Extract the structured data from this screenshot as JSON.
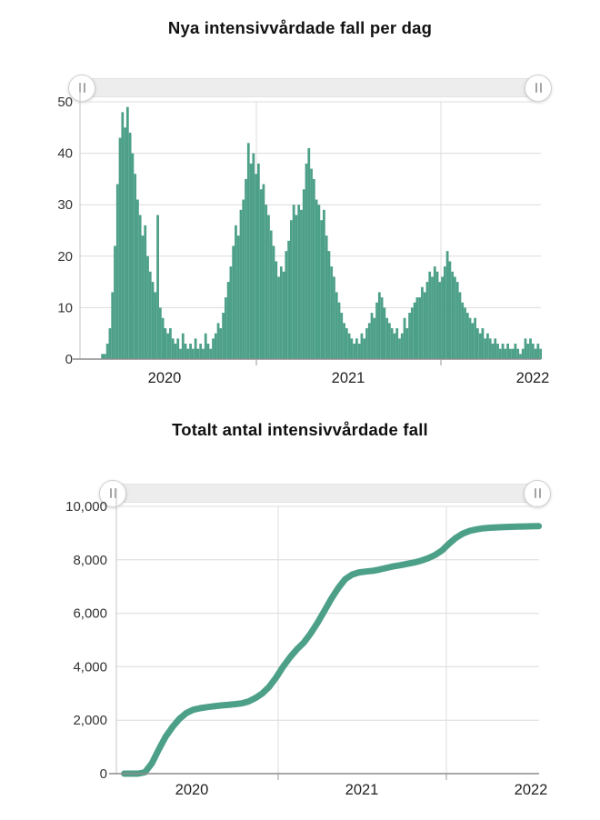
{
  "style": {
    "series_color": "#4DA088",
    "grid_color": "#DCDCDC",
    "axis_color": "#8C8C8C",
    "border_color": "#C4C4C4",
    "tick_color": "#999999",
    "label_color": "#333333",
    "background": "#FFFFFF"
  },
  "chart_data": [
    {
      "type": "bar",
      "title": "Nya intensivvårdade fall per dag",
      "x_tick_labels": [
        "2020",
        "2021",
        "2022"
      ],
      "x_domain_start": "2020-01-15",
      "x_domain_end": "2022-07-20",
      "ylim": [
        0,
        50
      ],
      "y_ticks": [
        0,
        10,
        20,
        30,
        40,
        50
      ],
      "y_tick_labels": [
        "0",
        "10",
        "20",
        "30",
        "40",
        "50"
      ],
      "grid": true,
      "bar_color": "#4DA088",
      "series_start": "2020-02-01",
      "sample_interval_days": 5,
      "values": [
        0,
        0,
        0,
        0,
        0,
        1,
        1,
        3,
        6,
        13,
        22,
        34,
        43,
        48,
        45,
        49,
        44,
        40,
        36,
        31,
        28,
        24,
        26,
        20,
        17,
        15,
        13,
        28,
        10,
        8,
        6,
        5,
        6,
        4,
        3,
        4,
        2,
        5,
        3,
        2,
        3,
        2,
        4,
        2,
        3,
        2,
        5,
        3,
        2,
        4,
        5,
        7,
        6,
        9,
        12,
        15,
        18,
        22,
        26,
        24,
        29,
        31,
        35,
        42,
        38,
        40,
        36,
        38,
        33,
        34,
        30,
        28,
        25,
        22,
        19,
        16,
        18,
        17,
        21,
        23,
        27,
        30,
        28,
        30,
        29,
        33,
        38,
        41,
        37,
        35,
        31,
        30,
        27,
        29,
        24,
        21,
        18,
        16,
        13,
        11,
        9,
        7,
        6,
        5,
        4,
        3,
        4,
        3,
        5,
        4,
        6,
        7,
        9,
        8,
        11,
        13,
        12,
        10,
        8,
        7,
        6,
        5,
        6,
        4,
        5,
        8,
        6,
        9,
        10,
        11,
        12,
        12,
        14,
        13,
        15,
        17,
        16,
        18,
        17,
        15,
        16,
        18,
        21,
        19,
        17,
        16,
        15,
        13,
        11,
        10,
        9,
        8,
        7,
        8,
        6,
        5,
        6,
        4,
        5,
        4,
        3,
        4,
        3,
        2,
        3,
        2,
        3,
        2,
        2,
        3,
        2,
        1,
        2,
        4,
        3,
        4,
        3,
        2,
        3,
        2
      ],
      "range_selector": {
        "left_handle_icon": "drag-handle",
        "right_handle_icon": "drag-handle"
      }
    },
    {
      "type": "line",
      "title": "Totalt antal intensivvårdade fall",
      "x_tick_labels": [
        "2020",
        "2021",
        "2022"
      ],
      "x_domain_start": "2020-01-15",
      "x_domain_end": "2022-07-20",
      "ylim": [
        0,
        10000
      ],
      "y_ticks": [
        0,
        2000,
        4000,
        6000,
        8000,
        10000
      ],
      "y_tick_labels": [
        "0",
        "2,000",
        "4,000",
        "6,000",
        "8,000",
        "10,000"
      ],
      "grid": true,
      "line_color": "#4DA088",
      "series_start": "2020-02-01",
      "sample_interval_days": 15,
      "values": [
        0,
        0,
        1,
        50,
        380,
        900,
        1380,
        1750,
        2050,
        2270,
        2390,
        2450,
        2490,
        2520,
        2550,
        2570,
        2600,
        2630,
        2700,
        2830,
        3000,
        3250,
        3600,
        4000,
        4350,
        4650,
        4900,
        5250,
        5650,
        6100,
        6550,
        6950,
        7280,
        7450,
        7530,
        7560,
        7590,
        7640,
        7700,
        7760,
        7800,
        7850,
        7900,
        7970,
        8060,
        8180,
        8350,
        8600,
        8820,
        8980,
        9080,
        9140,
        9180,
        9200,
        9215,
        9225,
        9235,
        9245,
        9250,
        9255,
        9258
      ],
      "final_value": 9258,
      "range_selector": {
        "left_handle_icon": "drag-handle",
        "right_handle_icon": "drag-handle"
      }
    }
  ]
}
